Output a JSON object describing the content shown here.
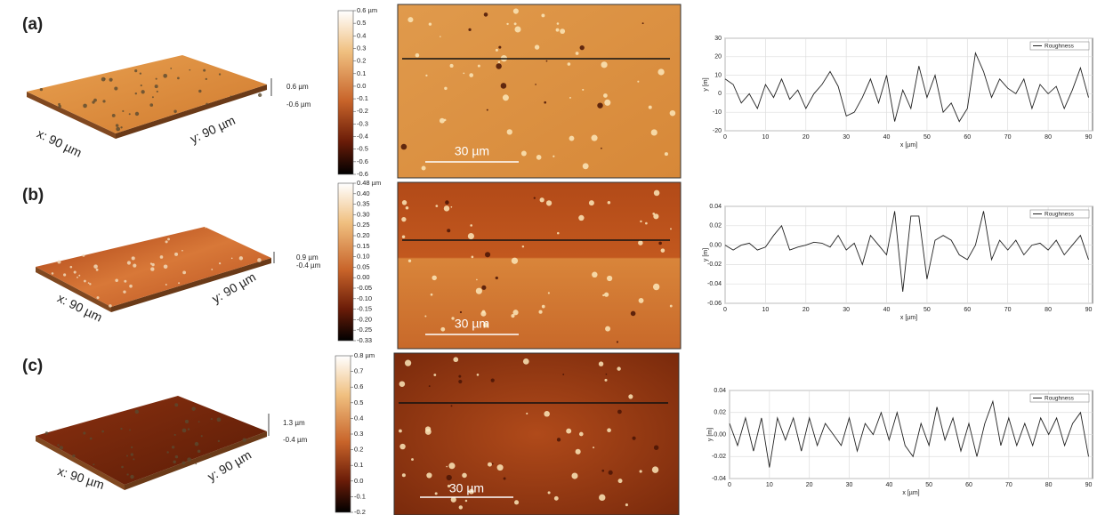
{
  "panels": [
    {
      "label": "(a)",
      "x_axis_3d": "x: 90 µm",
      "y_axis_3d": "y: 90 µm",
      "z_max_3d": "0.6 µm",
      "z_min_3d": "-0.6 µm",
      "colorbar_labels": [
        "0.6 µm",
        "0.5",
        "0.4",
        "0.3",
        "0.2",
        "0.1",
        "0.0",
        "-0.1",
        "-0.2",
        "-0.3",
        "-0.4",
        "-0.5",
        "-0.6",
        "-0.6"
      ],
      "scale_bar": "30 µm"
    },
    {
      "label": "(b)",
      "x_axis_3d": "x: 90 µm",
      "y_axis_3d": "y: 90 µm",
      "z_max_3d": "0.9 µm",
      "z_min_3d": "-0.4 µm",
      "colorbar_labels": [
        "0.48 µm",
        "0.40",
        "0.35",
        "0.30",
        "0.25",
        "0.20",
        "0.15",
        "0.10",
        "0.05",
        "0.00",
        "-0.05",
        "-0.10",
        "-0.15",
        "-0.20",
        "-0.25",
        "-0.33"
      ],
      "scale_bar": "30 µm"
    },
    {
      "label": "(c)",
      "x_axis_3d": "x: 90 µm",
      "y_axis_3d": "y: 90 µm",
      "z_max_3d": "1.3 µm",
      "z_min_3d": "-0.4 µm",
      "colorbar_labels": [
        "0.8 µm",
        "0.7",
        "0.6",
        "0.5",
        "0.4",
        "0.3",
        "0.2",
        "0.1",
        "0.0",
        "-0.1",
        "-0.2"
      ],
      "scale_bar": "30 µm"
    }
  ],
  "chart_data": [
    {
      "type": "line",
      "x_label": "x [µm]",
      "y_label": "y [m]",
      "legend": "upper right",
      "grid": true,
      "x": [
        0,
        2,
        4,
        6,
        8,
        10,
        12,
        14,
        16,
        18,
        20,
        22,
        24,
        26,
        28,
        30,
        32,
        34,
        36,
        38,
        40,
        42,
        44,
        46,
        48,
        50,
        52,
        54,
        56,
        58,
        60,
        62,
        64,
        66,
        68,
        70,
        72,
        74,
        76,
        78,
        80,
        82,
        84,
        86,
        88,
        90
      ],
      "series": [
        {
          "name": "Roughness",
          "color": "#222222",
          "values": [
            8,
            5,
            -5,
            0,
            -8,
            5,
            -2,
            8,
            -3,
            2,
            -8,
            0,
            5,
            12,
            4,
            -12,
            -10,
            -2,
            8,
            -5,
            10,
            -15,
            2,
            -8,
            15,
            -2,
            10,
            -10,
            -5,
            -15,
            -8,
            22,
            12,
            -2,
            8,
            3,
            0,
            8,
            -8,
            5,
            0,
            4,
            -8,
            2,
            14,
            -2
          ]
        }
      ],
      "xlim": [
        0,
        91
      ],
      "xticks": [
        0,
        10,
        20,
        30,
        40,
        50,
        60,
        70,
        80,
        90
      ],
      "ylim": [
        -20,
        30
      ],
      "yticks": [
        -20,
        -10,
        0,
        10,
        20,
        30
      ]
    },
    {
      "type": "line",
      "x_label": "x [µm]",
      "y_label": "y [m]",
      "legend": "upper right",
      "grid": true,
      "x": [
        0,
        2,
        4,
        6,
        8,
        10,
        12,
        14,
        16,
        18,
        20,
        22,
        24,
        26,
        28,
        30,
        32,
        34,
        36,
        38,
        40,
        42,
        44,
        46,
        48,
        50,
        52,
        54,
        56,
        58,
        60,
        62,
        64,
        66,
        68,
        70,
        72,
        74,
        76,
        78,
        80,
        82,
        84,
        86,
        88,
        90
      ],
      "series": [
        {
          "name": "Roughness",
          "color": "#222222",
          "values": [
            0,
            -0.005,
            0,
            0.002,
            -0.005,
            -0.002,
            0.01,
            0.02,
            -0.005,
            -0.002,
            0,
            0.003,
            0.002,
            -0.002,
            0.01,
            -0.005,
            0.002,
            -0.02,
            0.01,
            0,
            -0.01,
            0.035,
            -0.048,
            0.03,
            0.03,
            -0.035,
            0.005,
            0.01,
            0.005,
            -0.01,
            -0.015,
            0,
            0.035,
            -0.015,
            0.005,
            -0.005,
            0.005,
            -0.01,
            0,
            0.002,
            -0.005,
            0.005,
            -0.01,
            0,
            0.01,
            -0.015
          ]
        }
      ],
      "xlim": [
        0,
        91
      ],
      "xticks": [
        0,
        10,
        20,
        30,
        40,
        50,
        60,
        70,
        80,
        90
      ],
      "ylim": [
        -0.06,
        0.04
      ],
      "yticks": [
        -0.06,
        -0.04,
        -0.02,
        {
          "value": 0,
          "label": "0.00"
        },
        0.02,
        0.04
      ]
    },
    {
      "type": "line",
      "x_label": "x [µm]",
      "y_label": "y [m]",
      "legend": "upper right",
      "grid": true,
      "x": [
        0,
        2,
        4,
        6,
        8,
        10,
        12,
        14,
        16,
        18,
        20,
        22,
        24,
        26,
        28,
        30,
        32,
        34,
        36,
        38,
        40,
        42,
        44,
        46,
        48,
        50,
        52,
        54,
        56,
        58,
        60,
        62,
        64,
        66,
        68,
        70,
        72,
        74,
        76,
        78,
        80,
        82,
        84,
        86,
        88,
        90
      ],
      "series": [
        {
          "name": "Roughness",
          "color": "#222222",
          "values": [
            0.01,
            -0.01,
            0.015,
            -0.015,
            0.015,
            -0.03,
            0.015,
            -0.005,
            0.015,
            -0.015,
            0.015,
            -0.01,
            0.01,
            0,
            -0.01,
            0.015,
            -0.015,
            0.01,
            0,
            0.02,
            -0.005,
            0.02,
            -0.01,
            -0.02,
            0.01,
            -0.01,
            0.025,
            -0.005,
            0.015,
            -0.015,
            0.01,
            -0.02,
            0.01,
            0.03,
            -0.01,
            0.015,
            -0.01,
            0.01,
            -0.01,
            0.015,
            0,
            0.015,
            -0.01,
            0.01,
            0.02,
            -0.02
          ]
        }
      ],
      "xlim": [
        0,
        91
      ],
      "xticks": [
        0,
        10,
        20,
        30,
        40,
        50,
        60,
        70,
        80,
        90
      ],
      "ylim": [
        -0.04,
        0.04
      ],
      "yticks": [
        -0.04,
        -0.02,
        {
          "value": 0,
          "label": "0.00"
        },
        0.02,
        0.04
      ]
    }
  ]
}
